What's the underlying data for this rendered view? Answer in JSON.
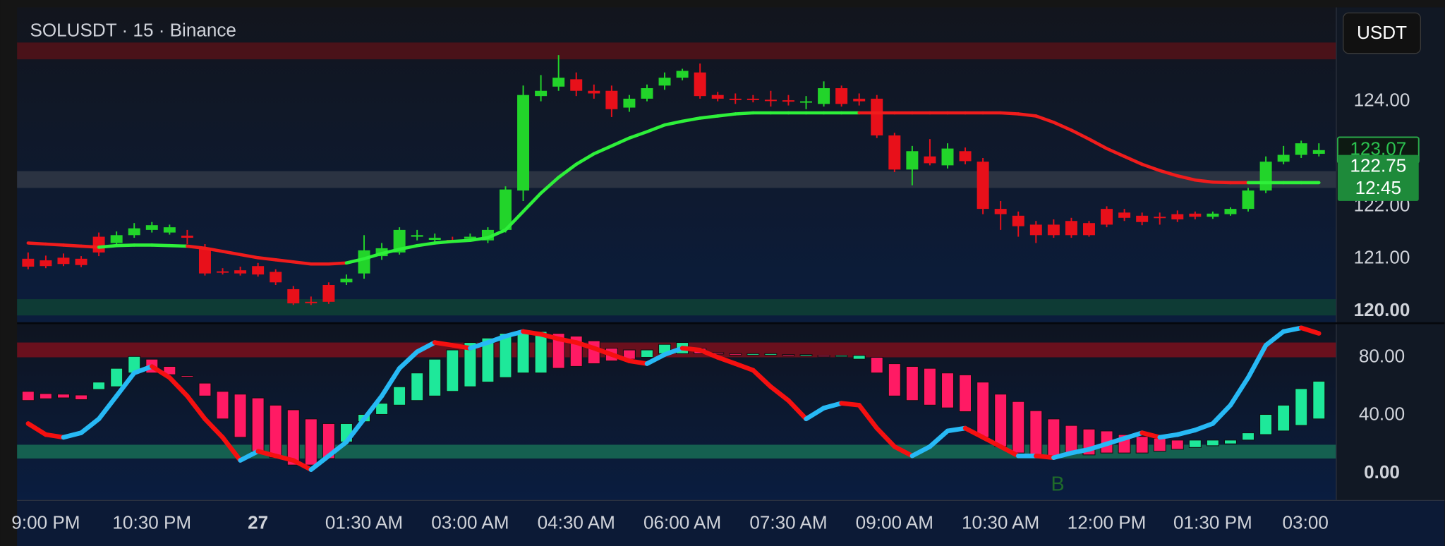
{
  "chart_data": [
    {
      "type": "candlestick",
      "title": "SOLUSDT · 15 · Binance",
      "currency": "USDT",
      "categories": [
        null,
        "9:00 PM",
        null,
        null,
        null,
        null,
        null,
        "10:30 PM",
        null,
        null,
        null,
        null,
        null,
        "27",
        null,
        null,
        null,
        null,
        null,
        "01:30 AM",
        null,
        null,
        null,
        null,
        null,
        "03:00 AM",
        null,
        null,
        null,
        null,
        null,
        "04:30 AM",
        null,
        null,
        null,
        null,
        null,
        "06:00 AM",
        null,
        null,
        null,
        null,
        null,
        "07:30 AM",
        null,
        null,
        null,
        null,
        null,
        "09:00 AM",
        null,
        null,
        null,
        null,
        null,
        "10:30 AM",
        null,
        null,
        null,
        null,
        null,
        "12:00 PM",
        null,
        null,
        null,
        null,
        null,
        "01:30 PM",
        null,
        null,
        null,
        null,
        null,
        "03:00"
      ],
      "open": [
        121.0,
        120.97,
        121.02,
        121.0,
        121.42,
        121.3,
        121.45,
        121.55,
        121.5,
        121.44,
        121.2,
        120.76,
        120.78,
        120.86,
        120.75,
        120.42,
        120.18,
        120.5,
        120.55,
        120.72,
        121.05,
        121.12,
        121.42,
        121.36,
        121.36,
        121.38,
        121.35,
        121.55,
        122.3,
        124.1,
        124.28,
        124.42,
        124.2,
        124.2,
        123.88,
        124.05,
        124.3,
        124.45,
        124.55,
        124.12,
        124.05,
        124.05,
        124.03,
        124.02,
        124.0,
        123.95,
        124.25,
        124.05,
        124.05,
        123.35,
        122.7,
        122.95,
        122.78,
        123.05,
        122.85,
        121.95,
        121.82,
        121.65,
        121.65,
        121.72,
        121.68,
        121.95,
        121.88,
        121.82,
        121.8,
        121.85,
        121.86,
        121.8,
        121.85,
        121.95,
        122.3,
        122.85,
        122.98,
        123.0
      ],
      "high": [
        121.12,
        121.06,
        121.1,
        121.05,
        121.5,
        121.52,
        121.68,
        121.7,
        121.65,
        121.55,
        121.28,
        120.82,
        120.85,
        120.92,
        120.8,
        120.48,
        120.28,
        120.55,
        120.7,
        121.45,
        121.3,
        121.6,
        121.55,
        121.48,
        121.42,
        121.48,
        121.6,
        122.38,
        124.3,
        124.5,
        124.88,
        124.55,
        124.32,
        124.3,
        124.12,
        124.32,
        124.55,
        124.62,
        124.72,
        124.18,
        124.15,
        124.12,
        124.2,
        124.12,
        124.1,
        124.38,
        124.3,
        124.15,
        124.12,
        123.4,
        123.15,
        123.28,
        123.2,
        123.12,
        122.92,
        122.1,
        121.9,
        121.72,
        121.75,
        121.78,
        121.72,
        122.0,
        121.95,
        121.88,
        121.88,
        121.92,
        121.9,
        121.9,
        121.98,
        122.35,
        122.95,
        123.15,
        123.25,
        123.2
      ],
      "low": [
        120.8,
        120.82,
        120.86,
        120.84,
        121.05,
        121.25,
        121.4,
        121.5,
        121.46,
        121.28,
        120.68,
        120.7,
        120.68,
        120.66,
        120.5,
        120.12,
        120.12,
        120.14,
        120.5,
        120.62,
        120.98,
        121.08,
        121.35,
        121.3,
        121.3,
        121.34,
        121.3,
        121.5,
        122.1,
        124.0,
        124.2,
        124.1,
        124.05,
        123.7,
        123.8,
        124.0,
        124.22,
        124.4,
        124.05,
        124.0,
        123.95,
        123.98,
        123.9,
        123.92,
        123.85,
        123.9,
        123.9,
        123.92,
        123.3,
        122.65,
        122.4,
        122.78,
        122.72,
        122.8,
        121.85,
        121.55,
        121.42,
        121.3,
        121.4,
        121.4,
        121.42,
        121.6,
        121.72,
        121.64,
        121.65,
        121.7,
        121.75,
        121.76,
        121.82,
        121.9,
        122.25,
        122.8,
        122.92,
        122.95
      ],
      "close": [
        120.85,
        120.86,
        120.9,
        120.88,
        121.12,
        121.45,
        121.58,
        121.64,
        121.6,
        121.4,
        120.72,
        120.74,
        120.72,
        120.7,
        120.55,
        120.15,
        120.16,
        120.18,
        120.62,
        121.16,
        121.2,
        121.55,
        121.45,
        121.4,
        121.35,
        121.42,
        121.55,
        122.32,
        124.12,
        124.2,
        124.45,
        124.2,
        124.15,
        123.85,
        124.05,
        124.25,
        124.45,
        124.58,
        124.1,
        124.05,
        124.04,
        124.03,
        124.02,
        124.01,
        124.0,
        124.25,
        123.95,
        124.0,
        123.35,
        122.7,
        123.05,
        122.82,
        123.1,
        122.86,
        121.95,
        121.85,
        121.62,
        121.45,
        121.45,
        121.45,
        121.45,
        121.65,
        121.78,
        121.7,
        121.79,
        121.75,
        121.8,
        121.86,
        121.95,
        122.3,
        122.85,
        122.98,
        123.2,
        123.07
      ],
      "ma_values": [
        121.3,
        121.28,
        121.26,
        121.24,
        121.22,
        121.25,
        121.26,
        121.26,
        121.25,
        121.24,
        121.2,
        121.14,
        121.08,
        121.02,
        120.98,
        120.94,
        120.9,
        120.9,
        120.92,
        121.0,
        121.1,
        121.18,
        121.25,
        121.3,
        121.33,
        121.35,
        121.4,
        121.55,
        121.9,
        122.25,
        122.55,
        122.8,
        123.0,
        123.15,
        123.3,
        123.42,
        123.55,
        123.62,
        123.68,
        123.72,
        123.76,
        123.78,
        123.78,
        123.78,
        123.78,
        123.78,
        123.78,
        123.78,
        123.78,
        123.78,
        123.78,
        123.78,
        123.78,
        123.78,
        123.78,
        123.78,
        123.76,
        123.72,
        123.6,
        123.45,
        123.28,
        123.1,
        122.95,
        122.8,
        122.68,
        122.58,
        122.5,
        122.46,
        122.45,
        122.45,
        122.45,
        122.45,
        122.45,
        122.45
      ],
      "up_color": "#22d42a",
      "down_color": "#e8101a",
      "ma_up_color": "#2ef03a",
      "ma_down_color": "#f01c1c",
      "ylim": [
        119.79,
        125.79
      ],
      "yticks": [
        {
          "value": 124,
          "label": "124.00"
        },
        {
          "value": 122,
          "label": "122.00"
        },
        {
          "value": 121,
          "label": "121.00"
        },
        {
          "value": 120,
          "label": "120.00"
        }
      ],
      "current_price": 123.07,
      "mark_price": 122.75,
      "countdown": "12:45",
      "zones": [
        {
          "lo": 124.8,
          "hi": 125.12,
          "color": "#4a1219"
        },
        {
          "lo": 122.35,
          "hi": 122.67,
          "color": "#2b3342"
        },
        {
          "lo": 119.92,
          "hi": 120.23,
          "color": "#0e3b35"
        }
      ]
    },
    {
      "type": "oscillator",
      "bar_high": [
        56.5,
        55,
        54.6,
        54,
        62.9,
        72.4,
        80.6,
        78.7,
        73.7,
        67.3,
        62.2,
        56.5,
        54.6,
        52,
        47,
        43.8,
        37.5,
        34.3,
        34.3,
        40.6,
        48.3,
        59.7,
        69.2,
        78.7,
        85.1,
        90.2,
        93.3,
        96.5,
        97.8,
        97.8,
        96.5,
        94.6,
        91.4,
        86.3,
        85.1,
        85.1,
        88.9,
        90.2,
        86.3,
        83.2,
        82.5,
        82.5,
        82.5,
        81.9,
        81.9,
        81.3,
        81.3,
        81.3,
        80,
        75.6,
        73.7,
        72.4,
        69.2,
        67.9,
        62.9,
        54.6,
        49.5,
        43.2,
        37.5,
        33,
        30.5,
        29.2,
        26.7,
        25.4,
        24.1,
        22.9,
        22.9,
        22.9,
        22.9,
        27.9,
        40.6,
        47,
        58.4,
        63.5
      ],
      "bar_low": [
        50.2,
        51.4,
        52,
        50.8,
        57.8,
        59.7,
        69.2,
        69.2,
        68,
        66.7,
        53.3,
        37.5,
        24.8,
        15.2,
        10.8,
        5.7,
        5.7,
        10.2,
        21.6,
        35.6,
        40.6,
        47,
        50.2,
        53.3,
        56.5,
        59.7,
        62.9,
        66,
        69.2,
        69.2,
        72.4,
        73.7,
        75.6,
        77.5,
        78.7,
        80,
        82.5,
        82.5,
        82.5,
        82.5,
        81.9,
        81.9,
        81.9,
        81.3,
        81.3,
        80.6,
        80.6,
        78.7,
        69.2,
        53.3,
        50.2,
        47,
        45.1,
        42.5,
        24.8,
        18.4,
        14,
        12,
        12,
        13.3,
        12.7,
        14,
        14,
        14,
        15.2,
        16.5,
        17.8,
        19,
        20.3,
        22.9,
        26.7,
        29.2,
        33,
        37.5
      ],
      "line_values": [
        34.3,
        26.7,
        24.8,
        27.9,
        37.5,
        53.3,
        69.2,
        73.7,
        66,
        53.3,
        37.5,
        24.8,
        8.9,
        15.2,
        12,
        8.9,
        2.5,
        12,
        21.6,
        37.5,
        53.3,
        72.4,
        83.8,
        90.2,
        88.3,
        86.3,
        90.2,
        94.6,
        97.8,
        95.9,
        92.7,
        90.2,
        86.3,
        81.9,
        77.5,
        75.6,
        81.9,
        86.3,
        85,
        80,
        75.6,
        71.1,
        59.7,
        50.2,
        37.5,
        45,
        48.3,
        47,
        31.1,
        18.4,
        12,
        18.4,
        29.2,
        31.1,
        24.8,
        18.4,
        12,
        12,
        10.8,
        14,
        16.5,
        20.3,
        24.1,
        27.9,
        24.8,
        26.7,
        29.8,
        34.3,
        47,
        66,
        88.3,
        97.8,
        100.3,
        96.5
      ],
      "rise_color": "#1ee89a",
      "fall_color": "#ff1a64",
      "line_up_color": "#27b9f5",
      "line_down_color": "#f51010",
      "ylim": [
        -18.4,
        102.9
      ],
      "yticks": [
        {
          "value": 80,
          "label": "80.00"
        },
        {
          "value": 40,
          "label": "40.00"
        },
        {
          "value": 0,
          "label": "0.00"
        }
      ],
      "zones": [
        {
          "lo": 80,
          "hi": 90.2,
          "color": "#6a101d"
        },
        {
          "lo": 10.2,
          "hi": 19.7,
          "color": "#156050"
        }
      ],
      "annotation": "B"
    }
  ]
}
